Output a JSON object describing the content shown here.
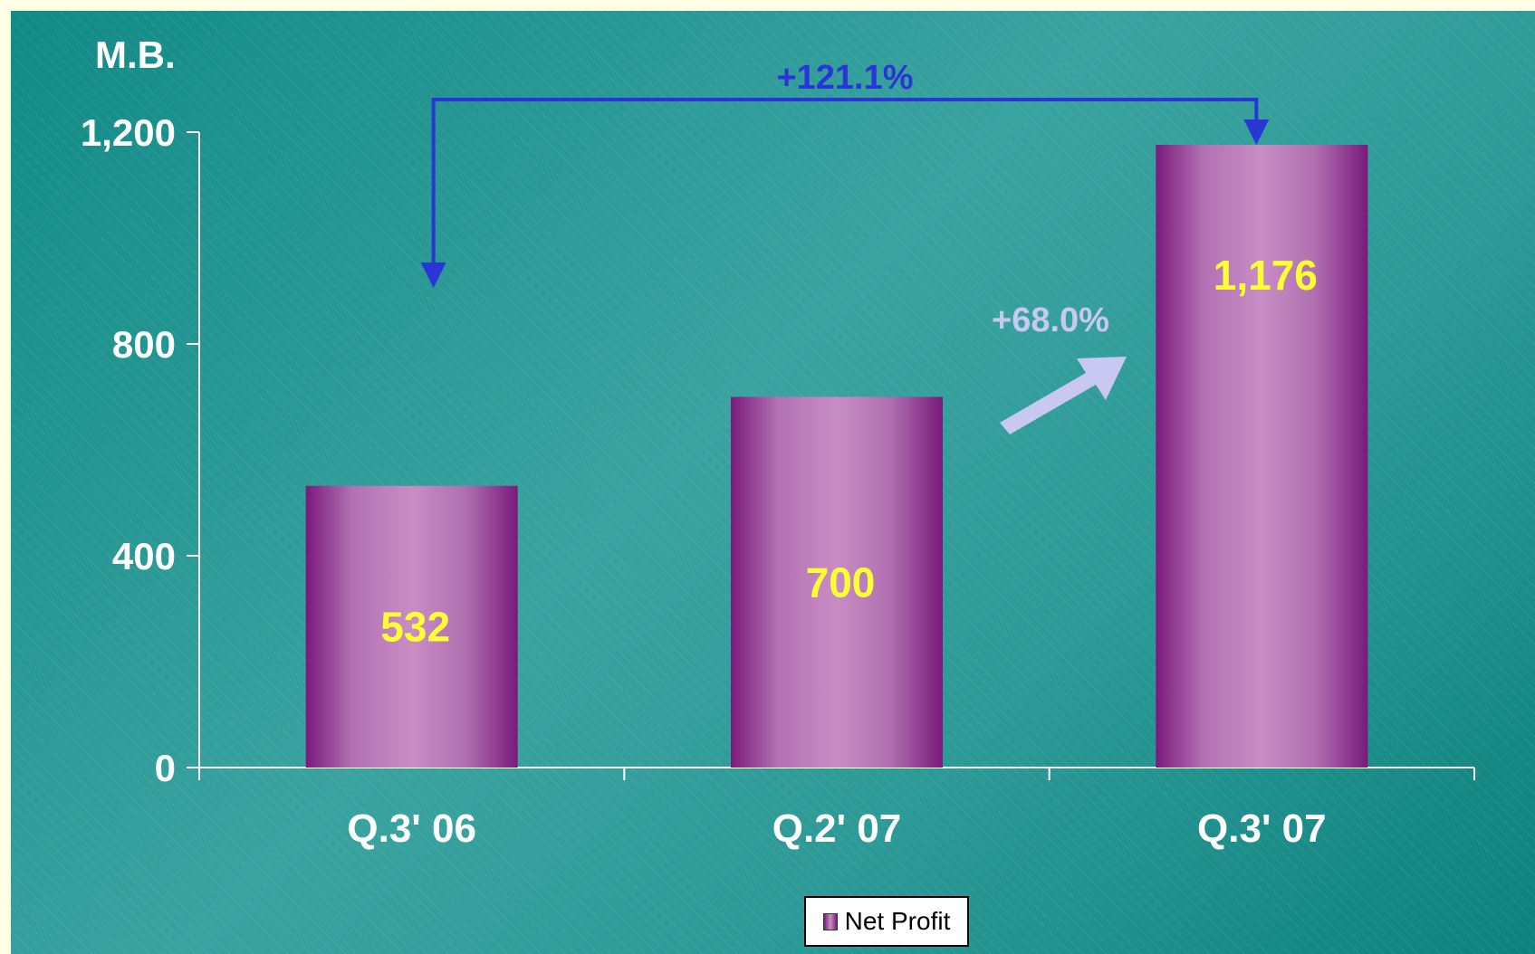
{
  "chart_data": {
    "type": "bar",
    "ylabel": "M.B.",
    "categories": [
      "Q.3' 06",
      "Q.2' 07",
      "Q.3' 07"
    ],
    "series": [
      {
        "name": "Net Profit",
        "values": [
          532,
          700,
          1176
        ],
        "value_labels": [
          "532",
          "700",
          "1,176"
        ]
      }
    ],
    "ylim": [
      0,
      1200
    ],
    "yticks": [
      0,
      400,
      800,
      1200
    ],
    "ytick_labels": [
      "0",
      "400",
      "800",
      "1,200"
    ],
    "annotations": [
      {
        "text": "+121.1%",
        "from": "Q.3' 06",
        "to": "Q.3' 07",
        "style": "bracket-arrow",
        "color": "#2a35d6"
      },
      {
        "text": "+68.0%",
        "from": "Q.2' 07",
        "to": "Q.3' 07",
        "style": "block-arrow",
        "color": "#c9c8f2"
      }
    ],
    "legend": {
      "position": "bottom-center"
    },
    "grid": false,
    "colors": {
      "bar_dark": "#7a1a7c",
      "bar_light": "#c98dc5",
      "value_text": "#ffff33",
      "axis": "#ffffff"
    }
  }
}
